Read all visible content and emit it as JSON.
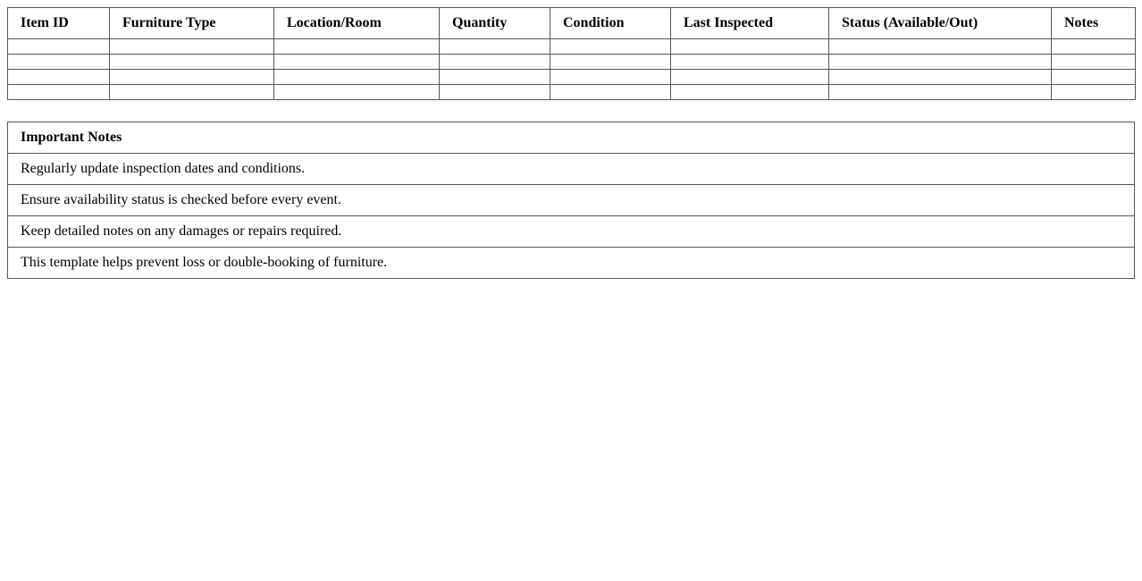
{
  "inventory": {
    "columns": [
      "Item ID",
      "Furniture Type",
      "Location/Room",
      "Quantity",
      "Condition",
      "Last Inspected",
      "Status (Available/Out)",
      "Notes"
    ],
    "rows": [
      [
        "",
        "",
        "",
        "",
        "",
        "",
        "",
        ""
      ],
      [
        "",
        "",
        "",
        "",
        "",
        "",
        "",
        ""
      ],
      [
        "",
        "",
        "",
        "",
        "",
        "",
        "",
        ""
      ],
      [
        "",
        "",
        "",
        "",
        "",
        "",
        "",
        ""
      ]
    ]
  },
  "notes": {
    "title": "Important Notes",
    "items": [
      "Regularly update inspection dates and conditions.",
      "Ensure availability status is checked before every event.",
      "Keep detailed notes on any damages or repairs required.",
      "This template helps prevent loss or double-booking of furniture."
    ]
  }
}
